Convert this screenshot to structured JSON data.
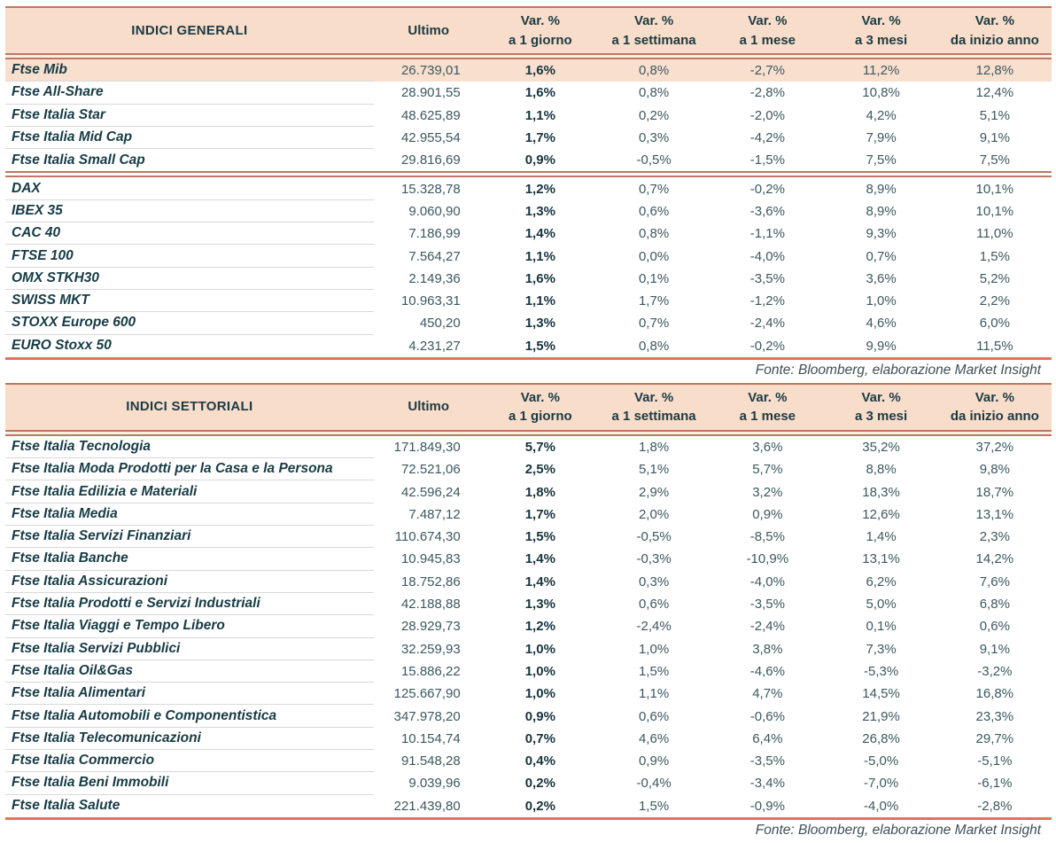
{
  "colors": {
    "header_bg": "#f8ddca",
    "highlight_row_bg": "#f9dfcd",
    "rule_salmon": "#c0765f",
    "bottom_rule_coral": "#e8705a",
    "row_separator_gray": "#d8d8d8",
    "text_dark_teal": "#173b45"
  },
  "columns": {
    "ultimo": "Ultimo",
    "vars": [
      {
        "l1": "Var. %",
        "l2": "a 1 giorno"
      },
      {
        "l1": "Var. %",
        "l2": "a 1 settimana"
      },
      {
        "l1": "Var. %",
        "l2": "a 1 mese"
      },
      {
        "l1": "Var. %",
        "l2": "a 3 mesi"
      },
      {
        "l1": "Var. %",
        "l2": "da inizio anno"
      }
    ]
  },
  "general_table": {
    "title": "INDICI GENERALI",
    "source_note": "Fonte: Bloomberg, elaborazione Market Insight",
    "groups": {
      "italy": [
        {
          "name": "Ftse Mib",
          "ultimo": "26.739,01",
          "d1": "1,6%",
          "w1": "0,8%",
          "m1": "-2,7%",
          "m3": "11,2%",
          "ytd": "12,8%",
          "highlight": true
        },
        {
          "name": "Ftse All-Share",
          "ultimo": "28.901,55",
          "d1": "1,6%",
          "w1": "0,8%",
          "m1": "-2,8%",
          "m3": "10,8%",
          "ytd": "12,4%"
        },
        {
          "name": "Ftse Italia Star",
          "ultimo": "48.625,89",
          "d1": "1,1%",
          "w1": "0,2%",
          "m1": "-2,0%",
          "m3": "4,2%",
          "ytd": "5,1%"
        },
        {
          "name": "Ftse Italia Mid Cap",
          "ultimo": "42.955,54",
          "d1": "1,7%",
          "w1": "0,3%",
          "m1": "-4,2%",
          "m3": "7,9%",
          "ytd": "9,1%"
        },
        {
          "name": "Ftse Italia Small Cap",
          "ultimo": "29.816,69",
          "d1": "0,9%",
          "w1": "-0,5%",
          "m1": "-1,5%",
          "m3": "7,5%",
          "ytd": "7,5%"
        }
      ],
      "europe": [
        {
          "name": "DAX",
          "ultimo": "15.328,78",
          "d1": "1,2%",
          "w1": "0,7%",
          "m1": "-0,2%",
          "m3": "8,9%",
          "ytd": "10,1%"
        },
        {
          "name": "IBEX 35",
          "ultimo": "9.060,90",
          "d1": "1,3%",
          "w1": "0,6%",
          "m1": "-3,6%",
          "m3": "8,9%",
          "ytd": "10,1%"
        },
        {
          "name": "CAC 40",
          "ultimo": "7.186,99",
          "d1": "1,4%",
          "w1": "0,8%",
          "m1": "-1,1%",
          "m3": "9,3%",
          "ytd": "11,0%"
        },
        {
          "name": "FTSE 100",
          "ultimo": "7.564,27",
          "d1": "1,1%",
          "w1": "0,0%",
          "m1": "-4,0%",
          "m3": "0,7%",
          "ytd": "1,5%"
        },
        {
          "name": "OMX STKH30",
          "ultimo": "2.149,36",
          "d1": "1,6%",
          "w1": "0,1%",
          "m1": "-3,5%",
          "m3": "3,6%",
          "ytd": "5,2%"
        },
        {
          "name": "SWISS MKT",
          "ultimo": "10.963,31",
          "d1": "1,1%",
          "w1": "1,7%",
          "m1": "-1,2%",
          "m3": "1,0%",
          "ytd": "2,2%"
        },
        {
          "name": "STOXX Europe 600",
          "ultimo": "450,20",
          "d1": "1,3%",
          "w1": "0,7%",
          "m1": "-2,4%",
          "m3": "4,6%",
          "ytd": "6,0%"
        },
        {
          "name": "EURO Stoxx 50",
          "ultimo": "4.231,27",
          "d1": "1,5%",
          "w1": "0,8%",
          "m1": "-0,2%",
          "m3": "9,9%",
          "ytd": "11,5%"
        }
      ]
    }
  },
  "sector_table": {
    "title": "INDICI SETTORIALI",
    "source_note": "Fonte: Bloomberg, elaborazione Market Insight",
    "rows": [
      {
        "name": "Ftse Italia Tecnologia",
        "ultimo": "171.849,30",
        "d1": "5,7%",
        "w1": "1,8%",
        "m1": "3,6%",
        "m3": "35,2%",
        "ytd": "37,2%"
      },
      {
        "name": "Ftse Italia Moda Prodotti per la Casa e la Persona",
        "ultimo": "72.521,06",
        "d1": "2,5%",
        "w1": "5,1%",
        "m1": "5,7%",
        "m3": "8,8%",
        "ytd": "9,8%"
      },
      {
        "name": "Ftse Italia Edilizia e Materiali",
        "ultimo": "42.596,24",
        "d1": "1,8%",
        "w1": "2,9%",
        "m1": "3,2%",
        "m3": "18,3%",
        "ytd": "18,7%"
      },
      {
        "name": "Ftse Italia Media",
        "ultimo": "7.487,12",
        "d1": "1,7%",
        "w1": "2,0%",
        "m1": "0,9%",
        "m3": "12,6%",
        "ytd": "13,1%"
      },
      {
        "name": "Ftse Italia Servizi Finanziari",
        "ultimo": "110.674,30",
        "d1": "1,5%",
        "w1": "-0,5%",
        "m1": "-8,5%",
        "m3": "1,4%",
        "ytd": "2,3%"
      },
      {
        "name": "Ftse Italia Banche",
        "ultimo": "10.945,83",
        "d1": "1,4%",
        "w1": "-0,3%",
        "m1": "-10,9%",
        "m3": "13,1%",
        "ytd": "14,2%"
      },
      {
        "name": "Ftse Italia Assicurazioni",
        "ultimo": "18.752,86",
        "d1": "1,4%",
        "w1": "0,3%",
        "m1": "-4,0%",
        "m3": "6,2%",
        "ytd": "7,6%"
      },
      {
        "name": "Ftse Italia Prodotti e Servizi Industriali",
        "ultimo": "42.188,88",
        "d1": "1,3%",
        "w1": "0,6%",
        "m1": "-3,5%",
        "m3": "5,0%",
        "ytd": "6,8%"
      },
      {
        "name": "Ftse Italia Viaggi e Tempo Libero",
        "ultimo": "28.929,73",
        "d1": "1,2%",
        "w1": "-2,4%",
        "m1": "-2,4%",
        "m3": "0,1%",
        "ytd": "0,6%"
      },
      {
        "name": "Ftse Italia Servizi Pubblici",
        "ultimo": "32.259,93",
        "d1": "1,0%",
        "w1": "1,0%",
        "m1": "3,8%",
        "m3": "7,3%",
        "ytd": "9,1%"
      },
      {
        "name": "Ftse Italia Oil&Gas",
        "ultimo": "15.886,22",
        "d1": "1,0%",
        "w1": "1,5%",
        "m1": "-4,6%",
        "m3": "-5,3%",
        "ytd": "-3,2%"
      },
      {
        "name": "Ftse Italia Alimentari",
        "ultimo": "125.667,90",
        "d1": "1,0%",
        "w1": "1,1%",
        "m1": "4,7%",
        "m3": "14,5%",
        "ytd": "16,8%"
      },
      {
        "name": "Ftse Italia Automobili e Componentistica",
        "ultimo": "347.978,20",
        "d1": "0,9%",
        "w1": "0,6%",
        "m1": "-0,6%",
        "m3": "21,9%",
        "ytd": "23,3%"
      },
      {
        "name": "Ftse Italia Telecomunicazioni",
        "ultimo": "10.154,74",
        "d1": "0,7%",
        "w1": "4,6%",
        "m1": "6,4%",
        "m3": "26,8%",
        "ytd": "29,7%"
      },
      {
        "name": "Ftse Italia Commercio",
        "ultimo": "91.548,28",
        "d1": "0,4%",
        "w1": "0,9%",
        "m1": "-3,5%",
        "m3": "-5,0%",
        "ytd": "-5,1%"
      },
      {
        "name": "Ftse Italia Beni Immobili",
        "ultimo": "9.039,96",
        "d1": "0,2%",
        "w1": "-0,4%",
        "m1": "-3,4%",
        "m3": "-7,0%",
        "ytd": "-6,1%"
      },
      {
        "name": "Ftse Italia Salute",
        "ultimo": "221.439,80",
        "d1": "0,2%",
        "w1": "1,5%",
        "m1": "-0,9%",
        "m3": "-4,0%",
        "ytd": "-2,8%"
      }
    ]
  }
}
